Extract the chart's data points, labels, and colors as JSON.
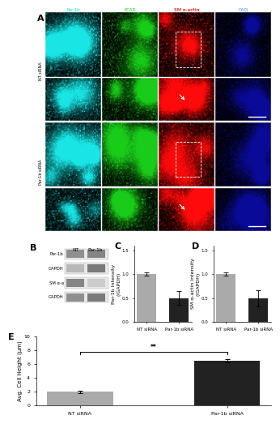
{
  "panel_A_labels": [
    "Par-1b",
    "ECAD",
    "SM α-actin",
    "DAPI"
  ],
  "panel_A_label_colors": [
    "#00DDDD",
    "#00DD00",
    "#FF3333",
    "#5599FF"
  ],
  "panel_A_label_bold": [
    false,
    false,
    true,
    false
  ],
  "row_labels": [
    "NT siRNA",
    "Par-1b siRNA"
  ],
  "panel_B_rows": [
    "Par-1b",
    "GAPDH",
    "SM α-a",
    "GAPDH"
  ],
  "panel_B_cols": [
    "NT",
    "Par-1b"
  ],
  "panel_C_values": [
    1.0,
    0.5
  ],
  "panel_C_errors": [
    0.04,
    0.14
  ],
  "panel_C_ylabel": "Par-1b Intensity\n(/GAPDH)",
  "panel_C_xticks": [
    "NT siRNA",
    "Par-1b siRNA"
  ],
  "panel_C_ylim": [
    0.0,
    1.6
  ],
  "panel_C_yticks": [
    0.0,
    0.5,
    1.0,
    1.5
  ],
  "panel_D_values": [
    1.0,
    0.5
  ],
  "panel_D_errors": [
    0.04,
    0.17
  ],
  "panel_D_ylabel": "SM α-actin Intensity\n(/GAPDH)",
  "panel_D_xticks": [
    "NT siRNA",
    "Par-1b siRNA"
  ],
  "panel_D_ylim": [
    0.0,
    1.6
  ],
  "panel_D_yticks": [
    0.0,
    0.5,
    1.0,
    1.5
  ],
  "panel_E_values": [
    2.0,
    6.5
  ],
  "panel_E_errors": [
    0.18,
    0.22
  ],
  "panel_E_ylabel": "Avg. Cell Height (μm)",
  "panel_E_xticks": [
    "NT siRNA",
    "Par-1b siRNA"
  ],
  "panel_E_ylim": [
    0,
    10
  ],
  "panel_E_yticks": [
    0,
    2,
    4,
    6,
    8,
    10
  ],
  "bar_color_gray": "#AAAAAA",
  "bar_color_black": "#222222",
  "background_color": "#FFFFFF",
  "significance_text": "**",
  "fig_label_fontsize": 8,
  "axis_fontsize": 4.5,
  "tick_fontsize": 4.0
}
